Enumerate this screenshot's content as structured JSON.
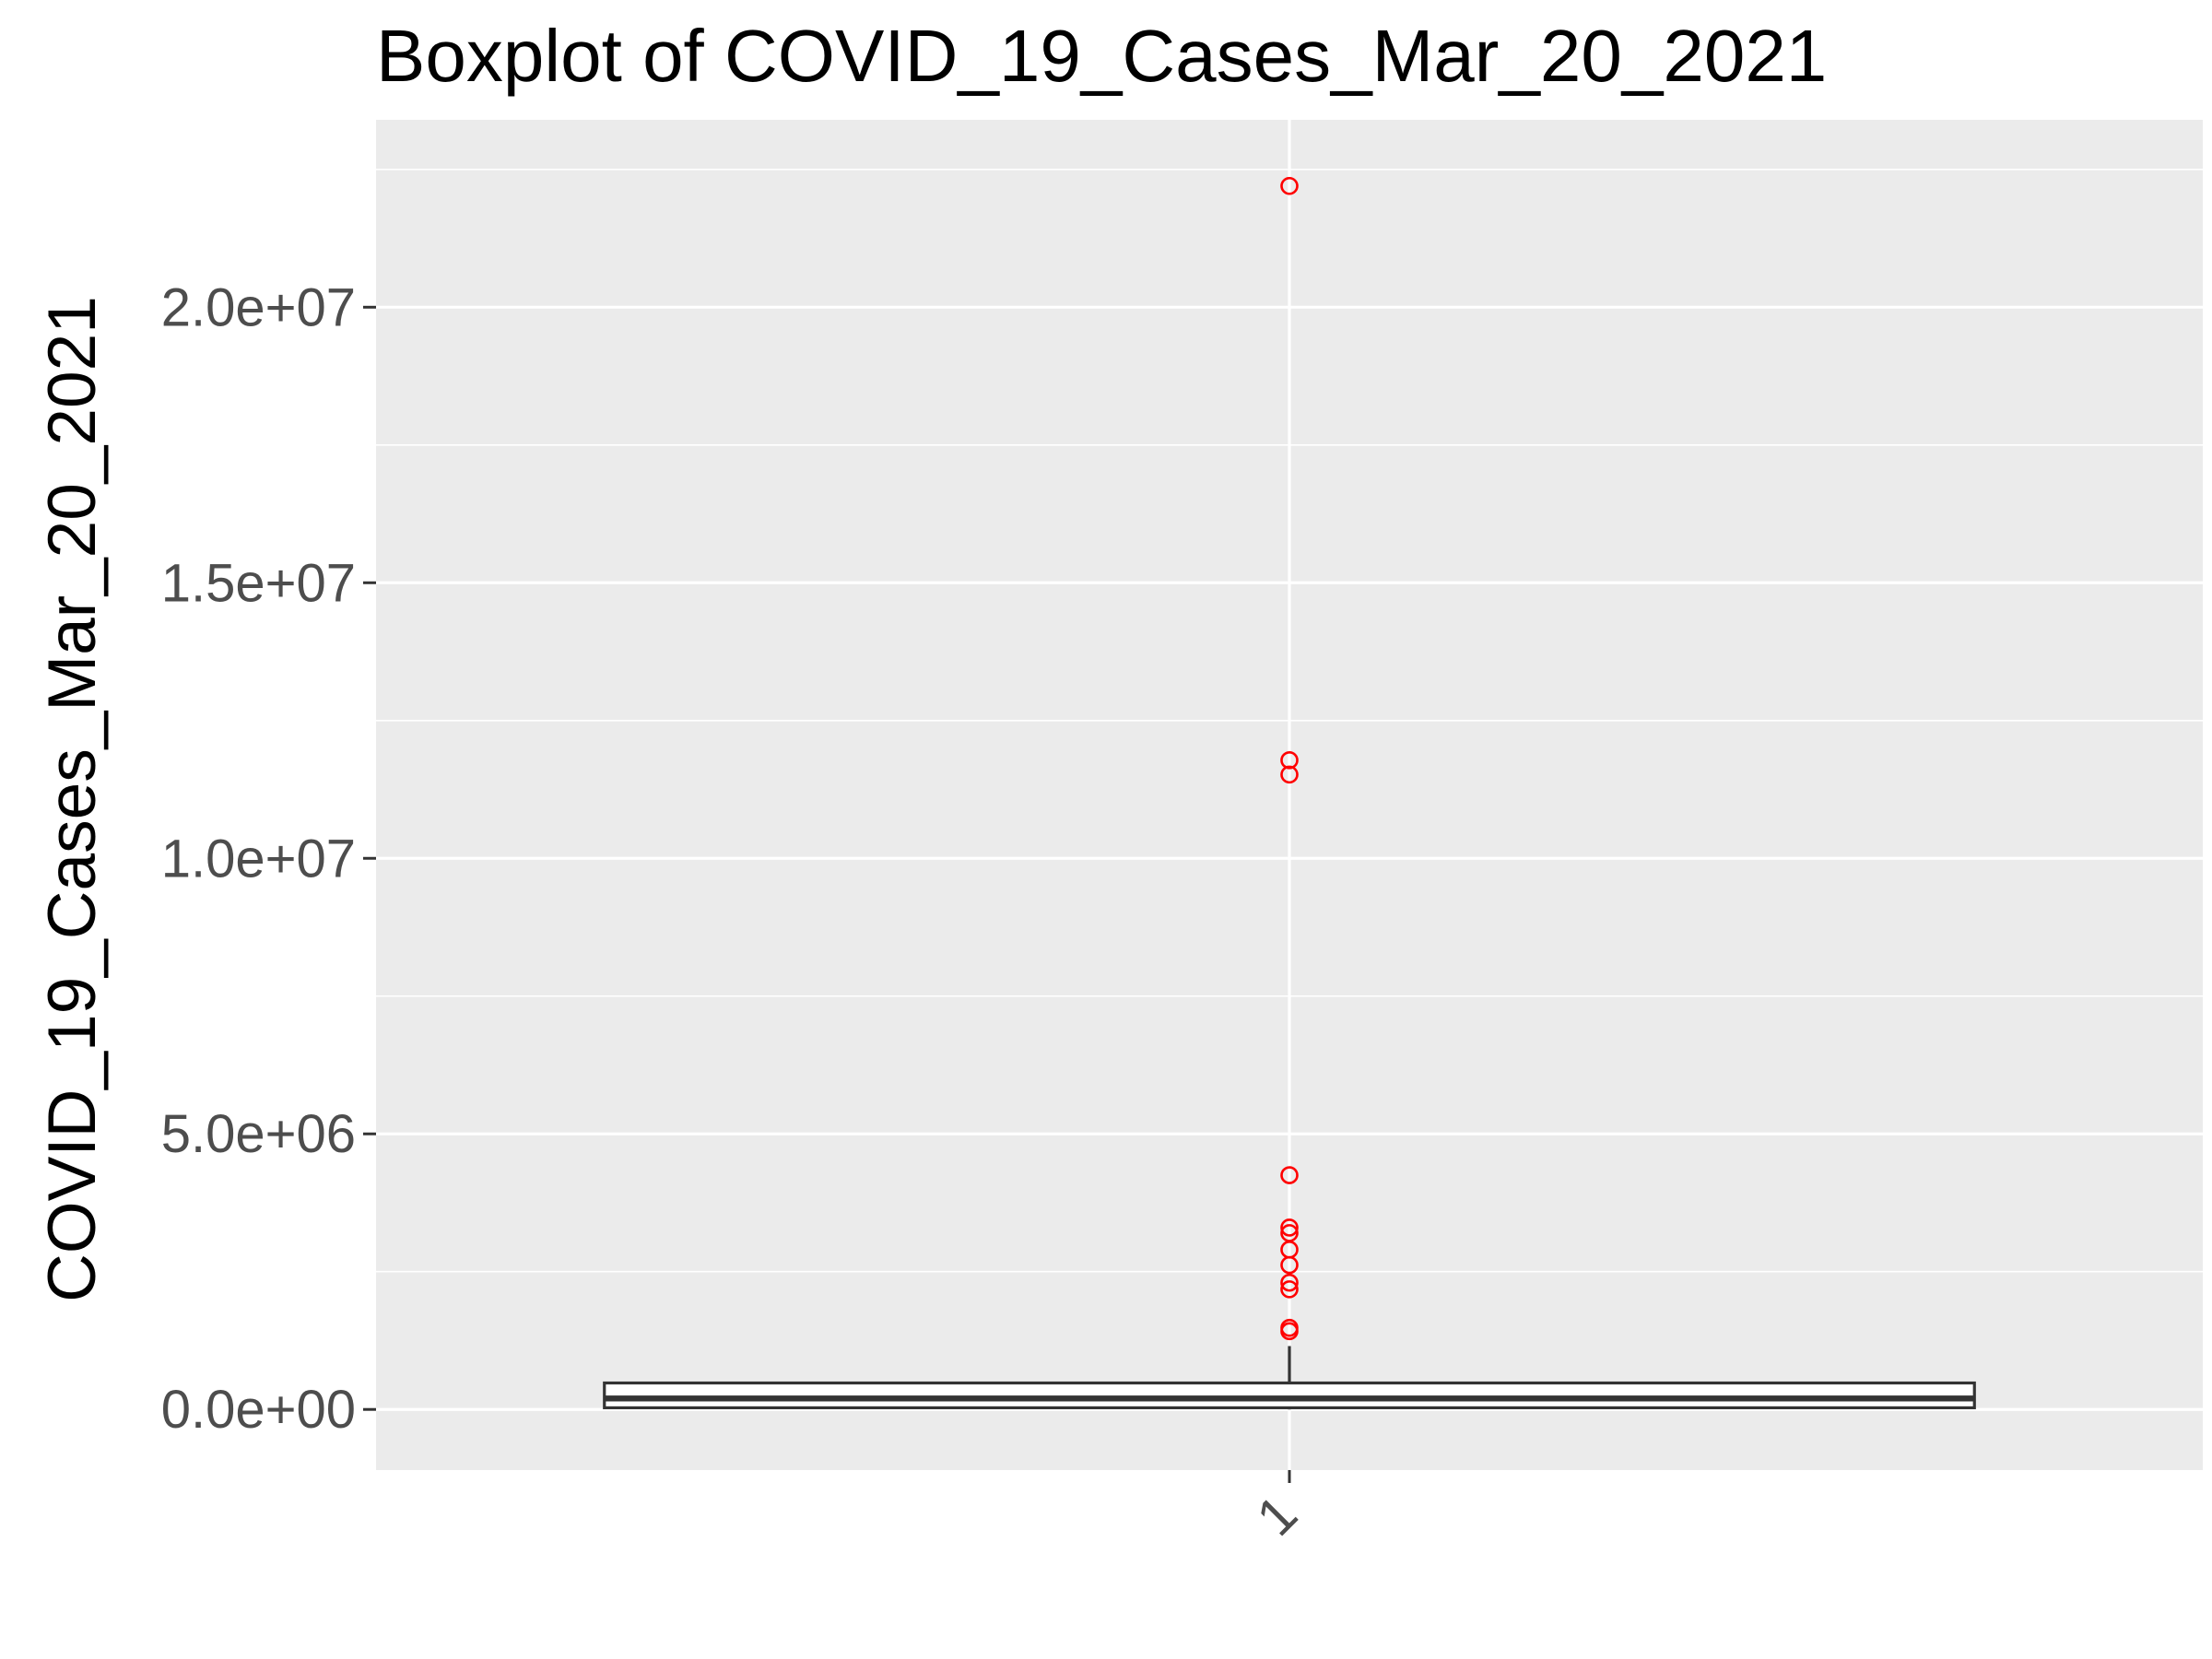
{
  "chart_data": {
    "type": "box",
    "title": "Boxplot of COVID_19_Cases_Mar_20_2021",
    "xlabel": "",
    "ylabel": "COVID_19_Cases_Mar_20_2021",
    "categories": [
      "1"
    ],
    "ylim": [
      -1100000,
      23400000
    ],
    "yticks": [
      0,
      5000000,
      10000000,
      15000000,
      20000000
    ],
    "ytick_labels": [
      "0.0e+00",
      "5.0e+06",
      "1.0e+07",
      "1.5e+07",
      "2.0e+07"
    ],
    "grid": true,
    "boxes": [
      {
        "category": "1",
        "min": 0,
        "q1": 30000,
        "median": 200000,
        "q3": 480000,
        "whisker_low": 0,
        "whisker_high": 1150000,
        "outliers": [
          22200000,
          11780000,
          11520000,
          4250000,
          3300000,
          3200000,
          2900000,
          2620000,
          2300000,
          2180000,
          1480000,
          1420000
        ]
      }
    ],
    "colors": {
      "panel": "#ebebeb",
      "grid": "#ffffff",
      "box_stroke": "#333333",
      "box_fill": "#ffffff",
      "outlier": "#ff0000",
      "tick_label": "#4d4d4d",
      "title": "#000000"
    }
  }
}
